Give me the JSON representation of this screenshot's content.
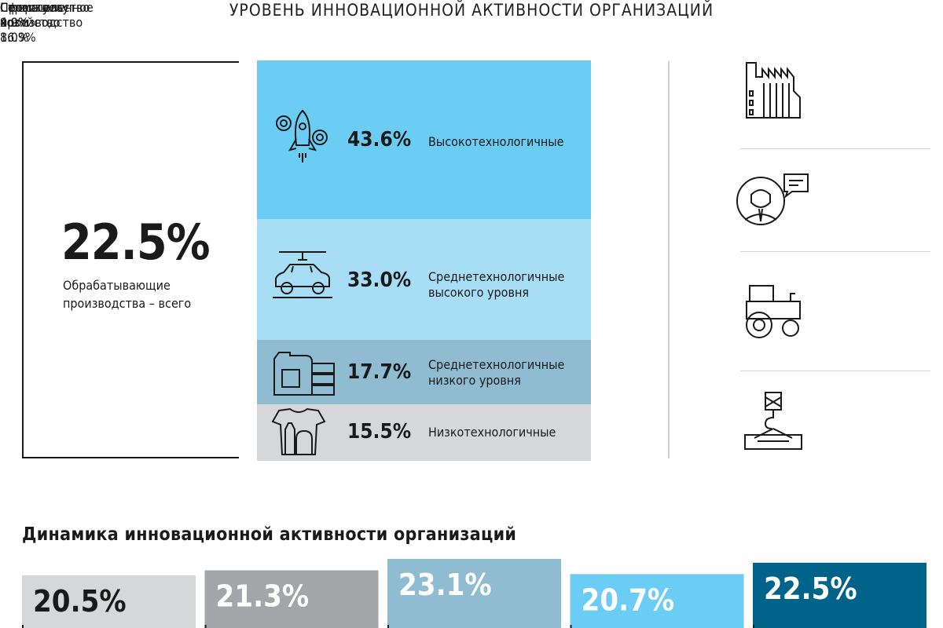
{
  "title": "УРОВЕНЬ ИННОВАЦИОННОЙ АКТИВНОСТИ ОРГАНИЗАЦИЙ",
  "manufacturing_total": {
    "value": "22.5%",
    "label_line1": "Обрабатывающие",
    "label_line2": "производства – всего"
  },
  "tech_levels": [
    {
      "value": "43.6%",
      "label_line1": "Высокотехнологичные",
      "label_line2": "",
      "color": "#6ccdf4",
      "icon": "gears-rocket-icon"
    },
    {
      "value": "33.0%",
      "label_line1": "Среднетехнологичные",
      "label_line2": "высокого уровня",
      "color": "#a8def5",
      "icon": "car-icon"
    },
    {
      "value": "17.7%",
      "label_line1": "Среднетехнологичные",
      "label_line2": "низкого уровня",
      "color": "#8fbcd1",
      "icon": "canister-tires-icon"
    },
    {
      "value": "15.5%",
      "label_line1": "Низкотехнологичные",
      "label_line2": "",
      "color": "#d6d7d9",
      "icon": "shirt-bottle-bread-icon"
    }
  ],
  "sectors": [
    {
      "name_line1": "Промышленное",
      "name_line2": "производство",
      "value": "16.9%",
      "icon": "factory-icon"
    },
    {
      "name_line1": "Сфера услуг",
      "name_line2": "",
      "value": "9.9%",
      "icon": "service-person-icon"
    },
    {
      "name_line1": "Сельское",
      "name_line2": "хозяйство",
      "value": "8.0%",
      "icon": "tractor-icon"
    },
    {
      "name_line1": "Строительство",
      "name_line2": "",
      "value": "4.0%",
      "icon": "crane-hook-icon"
    }
  ],
  "dynamics_title": "Динамика инновационной активности организаций",
  "chart_data": {
    "type": "bar",
    "title": "Динамика инновационной активности организаций",
    "categories": [
      "",
      "",
      "",
      "",
      ""
    ],
    "values": [
      20.5,
      21.3,
      23.1,
      20.7,
      22.5
    ],
    "labels": [
      "20.5%",
      "21.3%",
      "23.1%",
      "20.7%",
      "22.5%"
    ],
    "colors": [
      "#d6d7d9",
      "#a3a5a8",
      "#8fbcd1",
      "#6ccdf4",
      "#006389"
    ],
    "label_colors": [
      "#1a1a1a",
      "#ffffff",
      "#ffffff",
      "#ffffff",
      "#ffffff"
    ]
  }
}
